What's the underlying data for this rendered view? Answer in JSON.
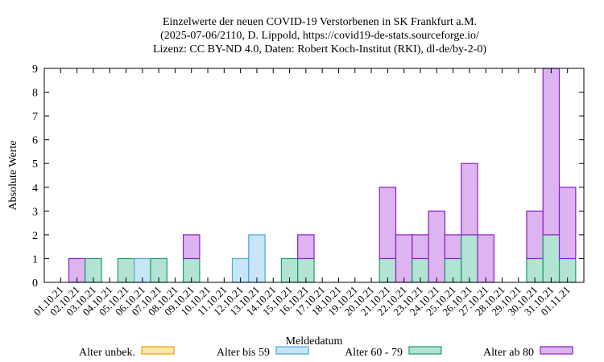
{
  "chart_data": {
    "type": "bar",
    "stacked": true,
    "title_lines": [
      "Einzelwerte der neuen COVID-19 Verstorbenen in SK Frankfurt a.M.",
      "(2025-07-06/2110, D. Lippold, https://covid19-de-stats.sourceforge.io/",
      "Lizenz: CC BY-ND 4.0, Daten: Robert Koch-Institut (RKI), dl-de/by-2-0)"
    ],
    "xlabel": "Meldedatum",
    "ylabel": "Absolute Werte",
    "ylim": [
      0,
      9
    ],
    "yticks": [
      0,
      1,
      2,
      3,
      4,
      5,
      6,
      7,
      8,
      9
    ],
    "grid": false,
    "legend_position": "bottom",
    "categories": [
      "01.10.21",
      "02.10.21",
      "03.10.21",
      "04.10.21",
      "05.10.21",
      "06.10.21",
      "07.10.21",
      "08.10.21",
      "09.10.21",
      "10.10.21",
      "11.10.21",
      "12.10.21",
      "13.10.21",
      "14.10.21",
      "15.10.21",
      "16.10.21",
      "17.10.21",
      "18.10.21",
      "19.10.21",
      "20.10.21",
      "21.10.21",
      "22.10.21",
      "23.10.21",
      "24.10.21",
      "25.10.21",
      "26.10.21",
      "27.10.21",
      "28.10.21",
      "29.10.21",
      "30.10.21",
      "31.10.21",
      "01.11.21"
    ],
    "series": [
      {
        "name": "Alter unbek.",
        "fill": "#fde8a8",
        "stroke": "#e8a200",
        "values": [
          0,
          0,
          0,
          0,
          0,
          0,
          0,
          0,
          0,
          0,
          0,
          0,
          0,
          0,
          0,
          0,
          0,
          0,
          0,
          0,
          0,
          0,
          0,
          0,
          0,
          0,
          0,
          0,
          0,
          0,
          0,
          0
        ]
      },
      {
        "name": "Alter bis 59",
        "fill": "#c6e5f7",
        "stroke": "#4aa8d8",
        "values": [
          0,
          0,
          0,
          0,
          0,
          1,
          0,
          0,
          0,
          0,
          0,
          1,
          2,
          0,
          0,
          0,
          0,
          0,
          0,
          0,
          0,
          0,
          0,
          0,
          0,
          0,
          0,
          0,
          0,
          0,
          0,
          0
        ]
      },
      {
        "name": "Alter 60 - 79",
        "fill": "#b3e3d3",
        "stroke": "#1a9a72",
        "values": [
          0,
          0,
          1,
          0,
          1,
          0,
          1,
          0,
          1,
          0,
          0,
          0,
          0,
          0,
          1,
          1,
          0,
          0,
          0,
          0,
          1,
          0,
          1,
          0,
          1,
          2,
          0,
          0,
          0,
          1,
          2,
          1
        ]
      },
      {
        "name": "Alter ab 80",
        "fill": "#ddb3f0",
        "stroke": "#8a1fc2",
        "values": [
          0,
          1,
          0,
          0,
          0,
          0,
          0,
          0,
          1,
          0,
          0,
          0,
          0,
          0,
          0,
          1,
          0,
          0,
          0,
          0,
          3,
          2,
          1,
          3,
          1,
          3,
          2,
          0,
          0,
          2,
          7,
          3
        ]
      }
    ]
  }
}
